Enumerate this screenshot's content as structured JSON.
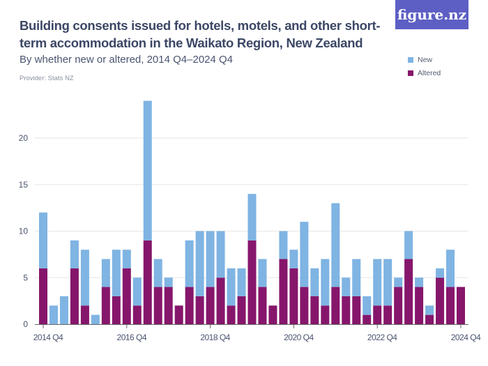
{
  "header": {
    "title": "Building consents issued for hotels, motels, and other short-term accommodation in the Waikato Region, New Zealand",
    "subtitle": "By whether new or altered, 2014 Q4–2024 Q4",
    "provider": "Provider: Stats NZ",
    "logo": "figure.nz"
  },
  "colors": {
    "new": "#7fb4e3",
    "altered": "#86166b",
    "title": "#3c4766",
    "logo_bg": "#5d5fc4"
  },
  "chart_data": {
    "type": "bar",
    "stacked": true,
    "categories": [
      "2014 Q4",
      "2015 Q1",
      "2015 Q2",
      "2015 Q3",
      "2015 Q4",
      "2016 Q1",
      "2016 Q2",
      "2016 Q3",
      "2016 Q4",
      "2017 Q1",
      "2017 Q2",
      "2017 Q3",
      "2017 Q4",
      "2018 Q1",
      "2018 Q2",
      "2018 Q3",
      "2018 Q4",
      "2019 Q1",
      "2019 Q2",
      "2019 Q3",
      "2019 Q4",
      "2020 Q1",
      "2020 Q2",
      "2020 Q3",
      "2020 Q4",
      "2021 Q1",
      "2021 Q2",
      "2021 Q3",
      "2021 Q4",
      "2022 Q1",
      "2022 Q2",
      "2022 Q3",
      "2022 Q4",
      "2023 Q1",
      "2023 Q2",
      "2023 Q3",
      "2023 Q4",
      "2024 Q1",
      "2024 Q2",
      "2024 Q3",
      "2024 Q4"
    ],
    "x_tick_labels": [
      "2014 Q4",
      "2016 Q4",
      "2018 Q4",
      "2020 Q4",
      "2022 Q4",
      "2024 Q4"
    ],
    "y_tick_labels": [
      "0",
      "5",
      "10",
      "15",
      "20"
    ],
    "ylim": [
      0,
      24
    ],
    "grid": true,
    "legend_position": "top-right",
    "series": [
      {
        "name": "Altered",
        "values": [
          6,
          0,
          0,
          6,
          2,
          0,
          4,
          3,
          6,
          2,
          9,
          4,
          4,
          2,
          4,
          3,
          4,
          5,
          2,
          3,
          9,
          4,
          2,
          7,
          6,
          4,
          3,
          2,
          4,
          3,
          3,
          1,
          2,
          2,
          4,
          7,
          4,
          1,
          5,
          4,
          4
        ]
      },
      {
        "name": "New",
        "values": [
          6,
          2,
          3,
          3,
          6,
          1,
          3,
          5,
          2,
          3,
          15,
          3,
          1,
          0,
          5,
          7,
          6,
          5,
          4,
          3,
          5,
          3,
          0,
          3,
          2,
          7,
          3,
          5,
          9,
          2,
          4,
          2,
          5,
          5,
          1,
          3,
          1,
          1,
          1,
          4,
          0
        ]
      }
    ]
  }
}
